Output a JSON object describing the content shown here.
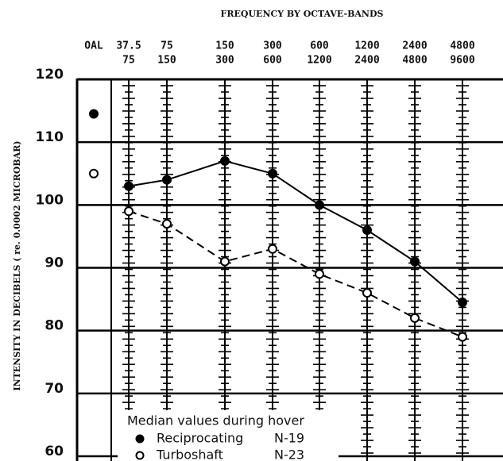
{
  "chart_data": {
    "type": "line",
    "title": "FREQUENCY BY OCTAVE-BANDS",
    "ylabel": "INTENSITY IN DECIBELS ( re. 0.0002 MICROBAR)",
    "oal_label": "OAL",
    "categories_top": [
      "37.5",
      "75",
      "150",
      "300",
      "600",
      "1200",
      "2400",
      "4800"
    ],
    "categories_bottom": [
      "75",
      "150",
      "300",
      "600",
      "1200",
      "2400",
      "4800",
      "9600"
    ],
    "series": [
      {
        "name": "Reciprocating",
        "n_label": "N-19",
        "marker": "filled",
        "dash": false,
        "oal": 114.5,
        "values": [
          103,
          104,
          107,
          105,
          100,
          96,
          91,
          84.5
        ]
      },
      {
        "name": "Turboshaft",
        "n_label": "N-23",
        "marker": "open",
        "dash": true,
        "oal": 105,
        "values": [
          99,
          97,
          91,
          93,
          89,
          86,
          82,
          79
        ]
      }
    ],
    "legend_title": "Median values during hover",
    "ylim": [
      60,
      120
    ],
    "yticks": [
      60,
      70,
      80,
      90,
      100,
      110,
      120
    ],
    "grid": true
  }
}
